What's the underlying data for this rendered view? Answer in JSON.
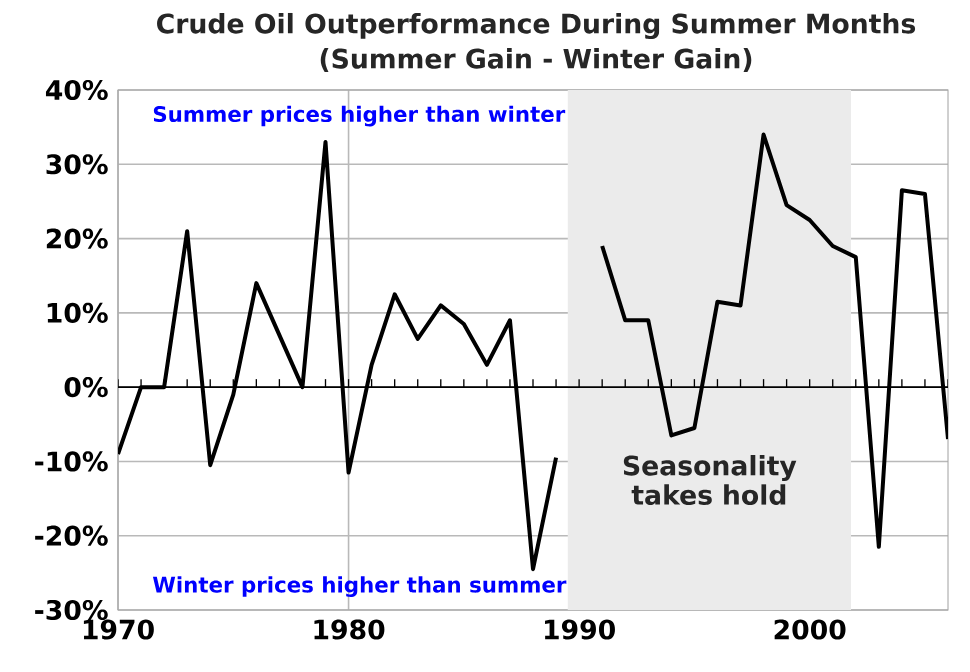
{
  "chart_data": {
    "type": "line",
    "title": "Crude Oil Outperformance During Summer Months",
    "subtitle": "(Summer Gain - Winter Gain)",
    "x": [
      1970,
      1971,
      1972,
      1973,
      1974,
      1975,
      1976,
      1977,
      1978,
      1979,
      1980,
      1981,
      1982,
      1983,
      1984,
      1985,
      1986,
      1987,
      1988,
      1989,
      1990,
      1991,
      1992,
      1993,
      1994,
      1995,
      1996,
      1997,
      1998,
      1999,
      2000,
      2001,
      2002,
      2003,
      2004,
      2005,
      2006
    ],
    "series": [
      {
        "color": "#000000",
        "values": [
          -9,
          0,
          0,
          21,
          -10.5,
          -1,
          14,
          7,
          0,
          33,
          -11.5,
          3,
          12.5,
          6.5,
          11,
          8.5,
          3,
          9,
          -24.5,
          -9.5,
          null,
          19,
          9,
          9,
          -6.5,
          -5.5,
          11.5,
          11,
          34,
          24.5,
          22.5,
          19,
          17.5,
          -21.5,
          26.5,
          26,
          -7
        ]
      }
    ],
    "xlim": [
      1970,
      2006
    ],
    "xticks": [
      1970,
      1980,
      1990,
      2000
    ],
    "ylim": [
      -30,
      40
    ],
    "yticks": [
      {
        "value": -30,
        "label": "-30%"
      },
      {
        "value": -20,
        "label": "-20%"
      },
      {
        "value": -10,
        "label": "-10%"
      },
      {
        "value": 0,
        "label": "0%"
      },
      {
        "value": 10,
        "label": "10%"
      },
      {
        "value": 20,
        "label": "20%"
      },
      {
        "value": 30,
        "label": "30%"
      },
      {
        "value": 40,
        "label": "40%"
      }
    ],
    "grid": true,
    "marker": "none",
    "line_style": "solid",
    "bands": [
      {
        "axis": "x",
        "from": 1989.5,
        "to": 2001.8,
        "label": "Seasonality takes hold",
        "color": "#ebebeb"
      }
    ],
    "annotations": [
      "Summer prices higher than winter",
      "Winter prices higher than summer"
    ]
  }
}
